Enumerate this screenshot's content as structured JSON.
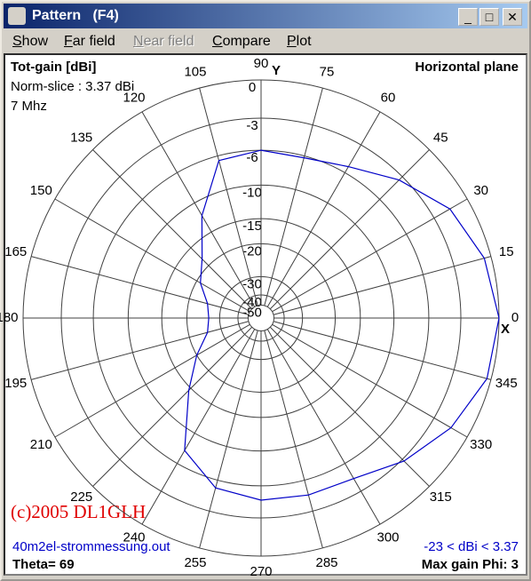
{
  "window": {
    "title": "Pattern   (F4)"
  },
  "menu": [
    {
      "label": "Show",
      "enabled": true
    },
    {
      "label": "Far field",
      "enabled": true
    },
    {
      "label": "Near field",
      "enabled": false
    },
    {
      "label": "Compare",
      "enabled": true
    },
    {
      "label": "Plot",
      "enabled": true
    }
  ],
  "info": {
    "gain_label": "Tot-gain [dBi]",
    "norm_slice": "Norm-slice : 3.37 dBi",
    "frequency": "7 Mhz",
    "plane": "Horizontal plane",
    "copyright": "(c)2005 DL1GLH",
    "file": "40m2el-strommessung.out",
    "range": "-23 < dBi < 3.37",
    "theta": "Theta= 69",
    "max_gain": "Max gain Phi: 3"
  },
  "chart_data": {
    "type": "polar",
    "x_axis_label": "X",
    "y_axis_label": "Y",
    "radial_scale": "log-periodic",
    "rlim": [
      -50,
      0
    ],
    "rticks": [
      0,
      -3,
      -6,
      -10,
      -15,
      -20,
      -30,
      -40,
      -50
    ],
    "angle_ticks": [
      0,
      15,
      30,
      45,
      60,
      75,
      90,
      105,
      120,
      135,
      150,
      165,
      180,
      195,
      210,
      225,
      240,
      255,
      270,
      285,
      300,
      315,
      330,
      345
    ],
    "series": [
      {
        "color": "#0000c8",
        "theta": [
          0,
          15,
          30,
          45,
          60,
          75,
          90,
          105,
          120,
          135,
          150,
          165,
          180,
          195,
          210,
          225,
          240,
          255,
          270,
          285,
          300,
          315,
          330,
          345
        ],
        "values": [
          0,
          -0.5,
          -1.5,
          -3.4,
          -5.3,
          -6.2,
          -6,
          -6.5,
          -12,
          -18,
          -21,
          -25,
          -26,
          -25,
          -20,
          -14.5,
          -7.6,
          -5.2,
          -4.6,
          -4.5,
          -4.3,
          -2.8,
          -1.4,
          -0.3
        ]
      }
    ]
  }
}
